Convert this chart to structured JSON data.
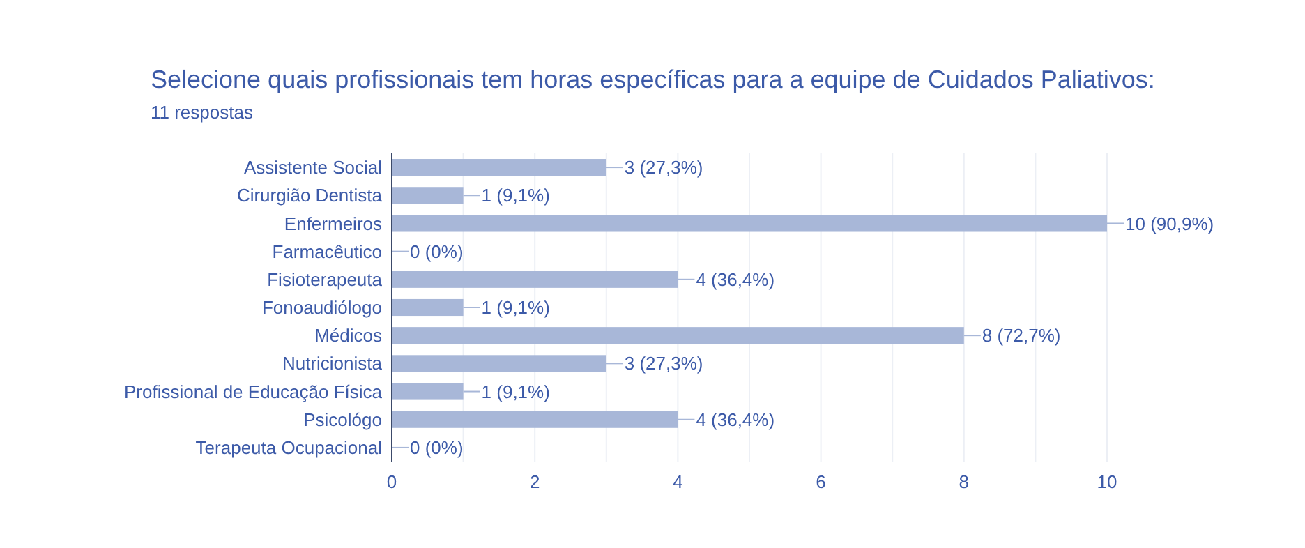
{
  "chart_data": {
    "type": "bar",
    "orientation": "horizontal",
    "title": "Selecione quais profissionais tem horas específicas para a equipe de Cuidados Paliativos:",
    "subtitle": "11 respostas",
    "categories": [
      "Assistente Social",
      "Cirurgião Dentista",
      "Enfermeiros",
      "Farmacêutico",
      "Fisioterapeuta",
      "Fonoaudiólogo",
      "Médicos",
      "Nutricionista",
      "Profissional de Educação Física",
      "Psicológo",
      "Terapeuta Ocupacional"
    ],
    "values": [
      3,
      1,
      10,
      0,
      4,
      1,
      8,
      3,
      1,
      4,
      0
    ],
    "value_labels": [
      "3 (27,3%)",
      "1 (9,1%)",
      "10 (90,9%)",
      "0 (0%)",
      "4 (36,4%)",
      "1 (9,1%)",
      "8 (72,7%)",
      "3 (27,3%)",
      "1 (9,1%)",
      "4 (36,4%)",
      "0 (0%)"
    ],
    "color": "#a8b7d8",
    "xlim": [
      0,
      10
    ],
    "xticks": [
      0,
      {
        "value": 1,
        "label": null
      },
      2,
      {
        "value": 3,
        "label": null
      },
      4,
      {
        "value": 5,
        "label": null
      },
      6,
      {
        "value": 7,
        "label": null
      },
      8,
      {
        "value": 9,
        "label": null
      },
      10
    ],
    "grid": "x"
  }
}
